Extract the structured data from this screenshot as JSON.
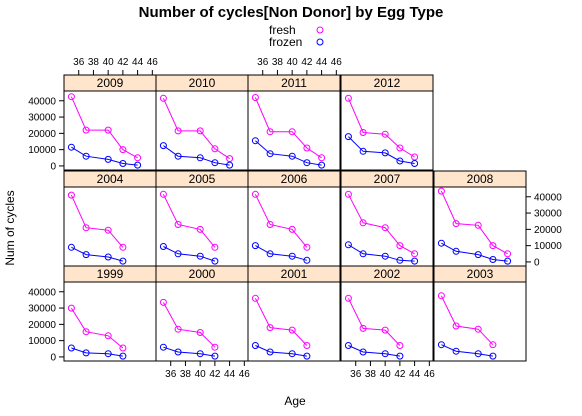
{
  "chart_data": {
    "type": "line",
    "title": "Number of cycles[Non Donor] by Egg Type",
    "xlabel": "Age",
    "ylabel": "Num of cycles",
    "x": [
      35,
      37,
      40,
      42,
      44
    ],
    "xticks": [
      36,
      38,
      40,
      42,
      44,
      46
    ],
    "xlim": [
      34,
      46.5
    ],
    "yticks": [
      0,
      10000,
      20000,
      30000,
      40000
    ],
    "ylim": [
      -2500,
      46000
    ],
    "legend": {
      "placement": "top",
      "entries": [
        "fresh",
        "frozen"
      ]
    },
    "colors": {
      "fresh": "#ff00ff",
      "frozen": "#0000ff",
      "strip": "#ffe5cc"
    },
    "panels": [
      {
        "year": "2009",
        "fresh": [
          42500,
          22000,
          22000,
          10000,
          5000
        ],
        "frozen": [
          11500,
          6000,
          4000,
          1500,
          500
        ]
      },
      {
        "year": "2010",
        "fresh": [
          41500,
          21500,
          21500,
          10500,
          4500
        ],
        "frozen": [
          12500,
          6000,
          5000,
          2000,
          500
        ]
      },
      {
        "year": "2011",
        "fresh": [
          42000,
          21000,
          21000,
          11000,
          5000
        ],
        "frozen": [
          15500,
          7500,
          6000,
          2000,
          500
        ]
      },
      {
        "year": "2012",
        "fresh": [
          41500,
          20500,
          19500,
          11000,
          5500
        ],
        "frozen": [
          18000,
          9000,
          8000,
          3000,
          1500
        ]
      },
      {
        "year": "2004",
        "fresh": [
          41000,
          21000,
          19500,
          9000
        ],
        "frozen": [
          9000,
          4500,
          3000,
          500
        ]
      },
      {
        "year": "2005",
        "fresh": [
          41500,
          23000,
          20000,
          9000
        ],
        "frozen": [
          9500,
          5000,
          3500,
          500
        ]
      },
      {
        "year": "2006",
        "fresh": [
          41500,
          23000,
          20000,
          9000
        ],
        "frozen": [
          10000,
          5000,
          3500,
          1000
        ]
      },
      {
        "year": "2007",
        "fresh": [
          41500,
          24000,
          21000,
          10000,
          5000
        ],
        "frozen": [
          10500,
          5000,
          3500,
          1000,
          500
        ]
      },
      {
        "year": "2008",
        "fresh": [
          43500,
          23500,
          22500,
          10000,
          5000
        ],
        "frozen": [
          11500,
          6500,
          4500,
          1500,
          500
        ]
      },
      {
        "year": "1999",
        "fresh": [
          30000,
          15500,
          13000,
          5500
        ],
        "frozen": [
          5500,
          2500,
          2000,
          500
        ]
      },
      {
        "year": "2000",
        "fresh": [
          33500,
          17000,
          15000,
          6000
        ],
        "frozen": [
          6000,
          3000,
          2000,
          500
        ]
      },
      {
        "year": "2001",
        "fresh": [
          36000,
          18000,
          16500,
          7000
        ],
        "frozen": [
          7000,
          3000,
          2000,
          500
        ]
      },
      {
        "year": "2002",
        "fresh": [
          36000,
          17500,
          16500,
          7000
        ],
        "frozen": [
          7000,
          3000,
          2000,
          500
        ]
      },
      {
        "year": "2003",
        "fresh": [
          37500,
          19000,
          17000,
          7500
        ],
        "frozen": [
          7500,
          3500,
          2000,
          500
        ]
      }
    ]
  }
}
